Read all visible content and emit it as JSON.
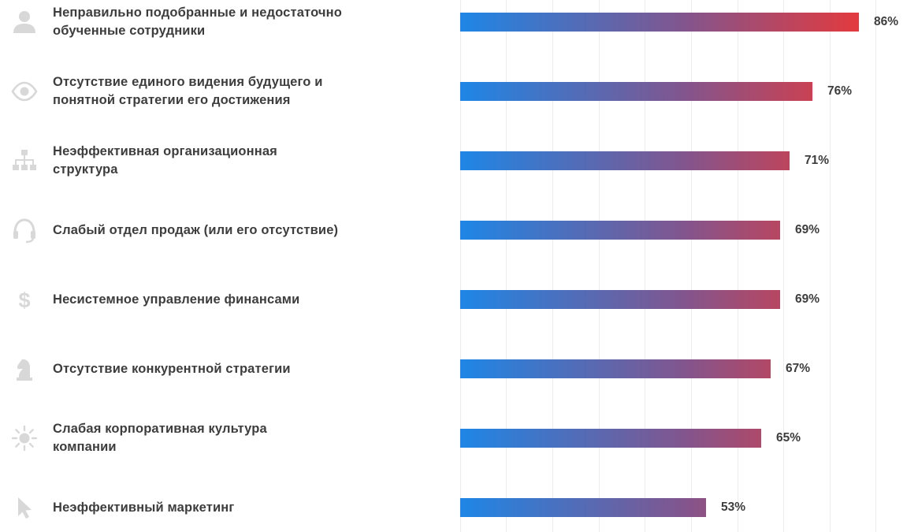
{
  "chart_data": {
    "type": "bar",
    "orientation": "horizontal",
    "title": "",
    "xlabel": "",
    "ylabel": "",
    "xlim": [
      0,
      100
    ],
    "grid": true,
    "categories": [
      "Неправильно подобранные и недостаточно обученные сотрудники",
      "Отсутствие единого видения будущего и понятной стратегии его достижения",
      "Неэффективная организационная структура",
      "Слабый отдел продаж (или его отсутствие)",
      "Несистемное управление финансами",
      "Отсутствие конкурентной стратегии",
      "Слабая корпоративная культура компании",
      "Неэффективный маркетинг"
    ],
    "label_lines": [
      [
        "Неправильно подобранные и недостаточно",
        "обученные сотрудники"
      ],
      [
        "Отсутствие единого видения будущего и",
        "понятной стратегии его достижения"
      ],
      [
        "Неэффективная организационная",
        "структура"
      ],
      [
        "Слабый отдел продаж (или его отсутствие)"
      ],
      [
        "Несистемное управление финансами"
      ],
      [
        "Отсутствие конкурентной стратегии"
      ],
      [
        "Слабая корпоративная культура",
        "компании"
      ],
      [
        "Неэффективный маркетинг"
      ]
    ],
    "values": [
      86,
      76,
      71,
      69,
      69,
      67,
      65,
      53
    ],
    "value_labels": [
      "86%",
      "76%",
      "71%",
      "69%",
      "69%",
      "67%",
      "65%",
      "53%"
    ],
    "icons": [
      "user-icon",
      "eye-icon",
      "org-chart-icon",
      "headset-icon",
      "dollar-icon",
      "chess-knight-icon",
      "sun-icon",
      "cursor-icon"
    ],
    "colors": {
      "gradient_start": "#1e86e6",
      "gradient_mid": "#80568f",
      "gradient_end": "#e33a3e",
      "icon": "#d8d8d8",
      "text": "#3d3d3d",
      "grid": "#ececec"
    }
  }
}
